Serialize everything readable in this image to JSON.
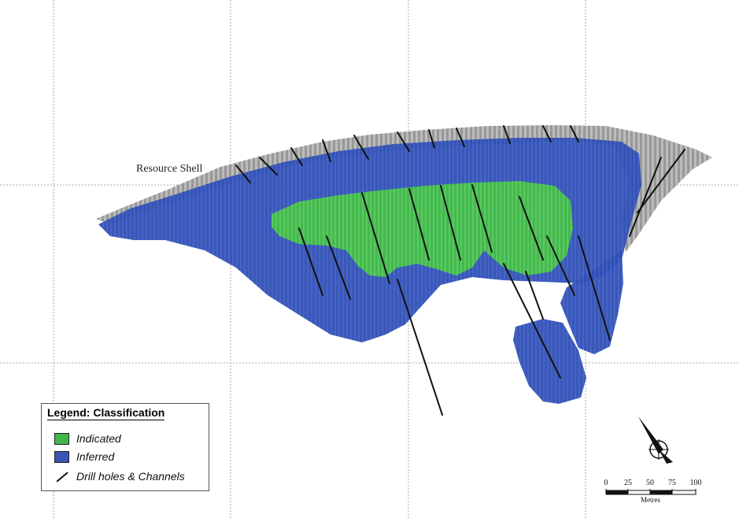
{
  "labels": {
    "resource_shell": "Resource Shell"
  },
  "legend": {
    "title": "Legend: Classification",
    "items": [
      {
        "label": "Indicated",
        "color": "#41b649",
        "kind": "swatch"
      },
      {
        "label": "Inferred",
        "color": "#3a55b4",
        "kind": "swatch"
      },
      {
        "label": "Drill holes & Channels",
        "color": "#111111",
        "kind": "line"
      }
    ]
  },
  "scale_bar": {
    "ticks": [
      "0",
      "25",
      "50",
      "75",
      "100"
    ],
    "unit": "Metres"
  },
  "colors": {
    "shell": "#9a9a9a",
    "inferred": "#2f4fb5",
    "indicated": "#4cc24a",
    "drill": "#111111",
    "grid": "#a9a9a9"
  },
  "icons": {
    "north_arrow": "north-arrow-icon"
  }
}
